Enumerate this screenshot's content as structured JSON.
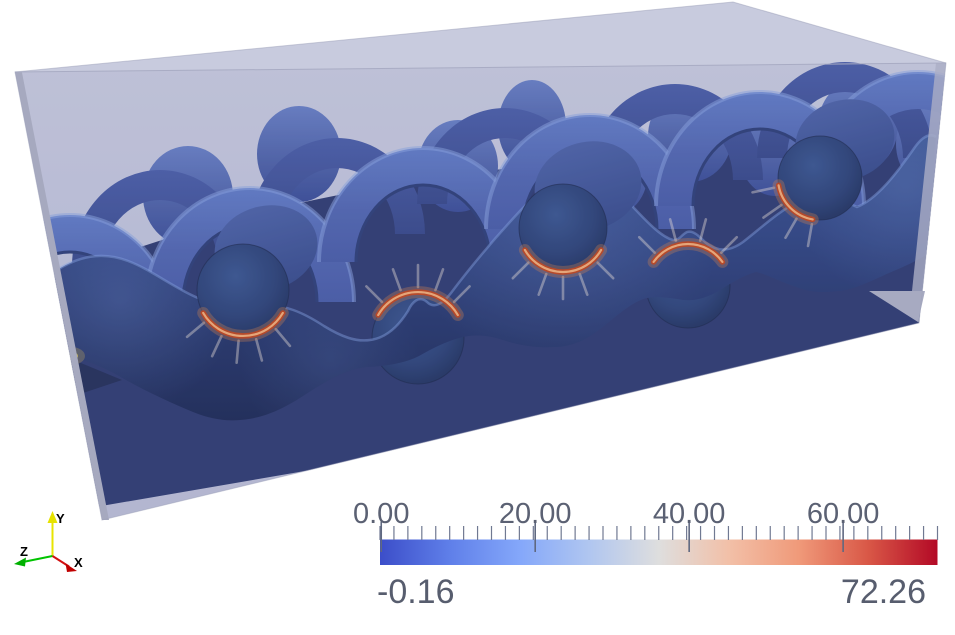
{
  "viewport": {
    "background": "#ffffff"
  },
  "axes_widget": {
    "x_label": "X",
    "y_label": "Y",
    "z_label": "Z",
    "x_color": "#d21010",
    "y_color": "#e8e400",
    "z_color": "#00b800"
  },
  "scene": {
    "box_color": "#b6b9d3",
    "box_top_color": "#cbcde0",
    "tow_color": "#23397a",
    "tow_highlight_color": "#5671bf",
    "hotspot_color": "#bc3a10",
    "edge_hotspot_color": "#d8c050",
    "hotspot_count": 5
  },
  "chart_data": {
    "type": "heatmap",
    "title": "",
    "colorbar": {
      "orientation": "horizontal",
      "min": -0.16,
      "max": 72.26,
      "min_label": "-0.16",
      "max_label": "72.26",
      "major_ticks": [
        0,
        20,
        40,
        60
      ],
      "major_tick_labels": [
        "0.00",
        "20.00",
        "40.00",
        "60.00"
      ],
      "minor_tick_count": 41,
      "colormap": "cool-to-warm",
      "gradient_stops": [
        [
          0.0,
          "#3c4ec9"
        ],
        [
          0.125,
          "#5f7fe9"
        ],
        [
          0.25,
          "#84a7fa"
        ],
        [
          0.375,
          "#b0c6f0"
        ],
        [
          0.5,
          "#dedede"
        ],
        [
          0.625,
          "#f2c0a8"
        ],
        [
          0.75,
          "#f09a7a"
        ],
        [
          0.875,
          "#d95847"
        ],
        [
          1.0,
          "#b30926"
        ]
      ]
    }
  }
}
